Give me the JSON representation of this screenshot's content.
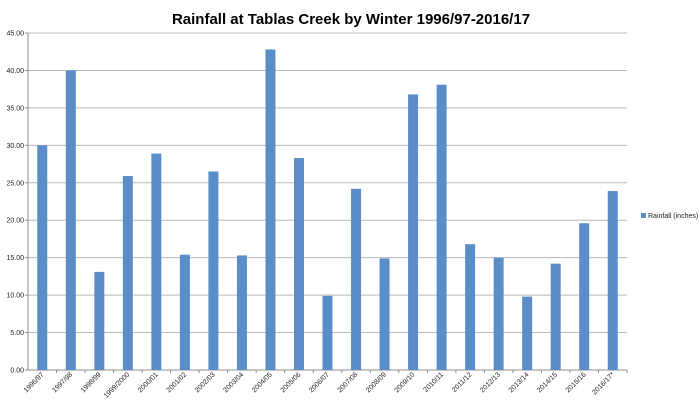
{
  "chart_data": {
    "type": "bar",
    "title": "Rainfall at Tablas Creek by Winter 1996/97-2016/17",
    "xlabel": "",
    "ylabel": "",
    "ylim": [
      0,
      45
    ],
    "yticks": [
      "0.00",
      "5.00",
      "10.00",
      "15.00",
      "20.00",
      "25.00",
      "30.00",
      "35.00",
      "40.00",
      "45.00"
    ],
    "categories": [
      "1996/97",
      "1997/98",
      "1998/99",
      "1999/2000",
      "2000/01",
      "2001/02",
      "2002/03",
      "2003/04",
      "2004/05",
      "2005/06",
      "2006/07",
      "2007/08",
      "2008/09",
      "2009/10",
      "2010/11",
      "2011/12",
      "2012/13",
      "2013/14",
      "2014/15",
      "2015/16",
      "2016/17*"
    ],
    "series": [
      {
        "name": "Rainfall (inches)",
        "color": "#5b8ec9",
        "values": [
          30.0,
          40.0,
          13.1,
          25.9,
          28.9,
          15.4,
          26.5,
          15.3,
          42.8,
          28.3,
          9.9,
          24.2,
          14.9,
          36.8,
          38.1,
          16.8,
          15.0,
          9.8,
          14.2,
          19.6,
          23.9
        ]
      }
    ],
    "grid": true,
    "legend_position": "right"
  }
}
